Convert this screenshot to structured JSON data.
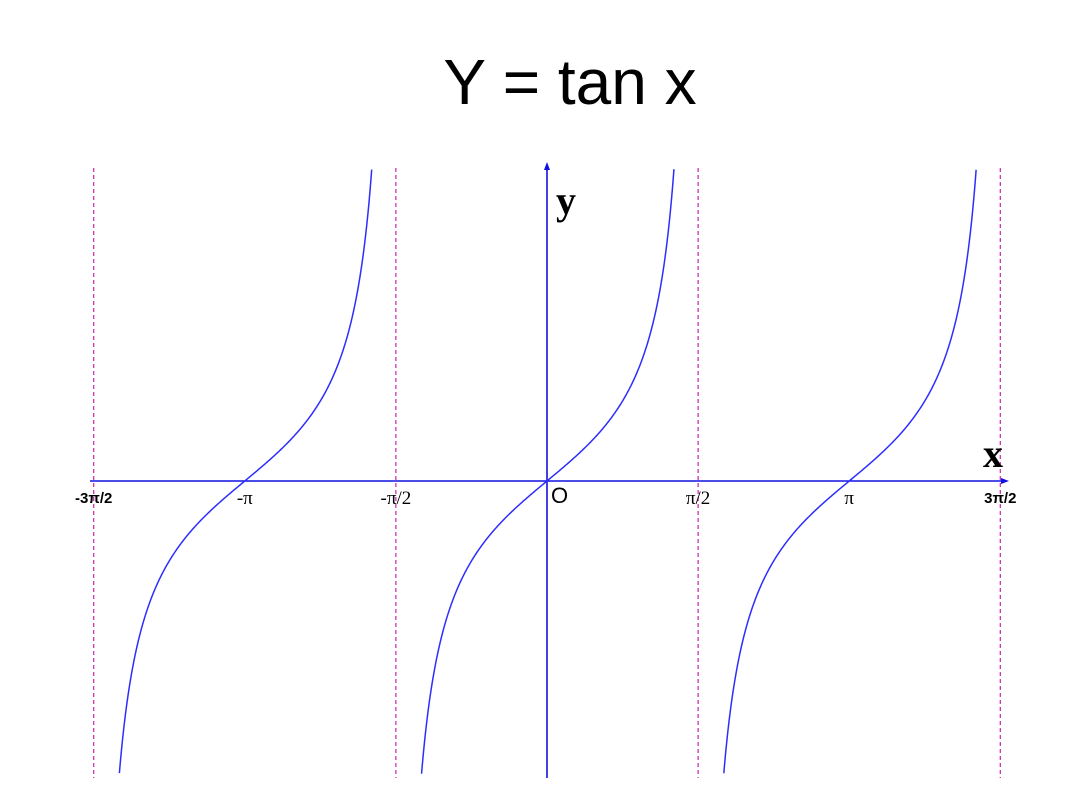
{
  "title": "Y = tan x",
  "chart_data": {
    "type": "line",
    "title": "Y = tan x",
    "xlabel": "x",
    "ylabel": "y",
    "origin_label": "O",
    "function": "tan(x)",
    "xlim": [
      -4.712,
      4.712
    ],
    "ylim": [
      -4.0,
      4.0
    ],
    "grid": false,
    "asymptotes": [
      -4.712,
      -1.571,
      1.571,
      4.712
    ],
    "x_ticks": [
      {
        "value": -4.712,
        "label": "-3π/2",
        "style": "bold"
      },
      {
        "value": -3.1416,
        "label": "-π",
        "style": "serif"
      },
      {
        "value": -1.5708,
        "label": "-π/2",
        "style": "serif"
      },
      {
        "value": 1.5708,
        "label": "π/2",
        "style": "serif"
      },
      {
        "value": 3.1416,
        "label": "π",
        "style": "serif"
      },
      {
        "value": 4.712,
        "label": "3π/2",
        "style": "bold"
      }
    ],
    "colors": {
      "curve": "#2d2dff",
      "axes": "#1010e0",
      "asymptote": "#cc22aa"
    }
  }
}
